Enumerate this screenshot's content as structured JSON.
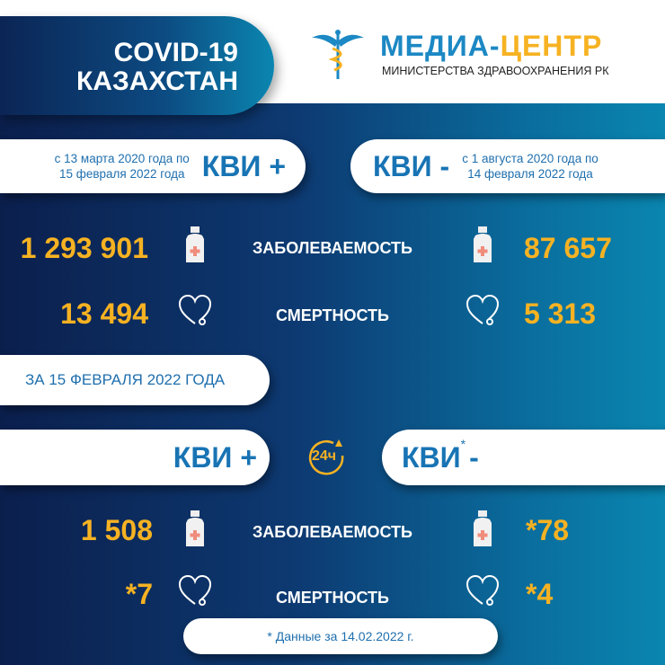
{
  "header": {
    "title_line1": "COVID-19",
    "title_line2": "КАЗАХСТАН",
    "logo_part1": "МЕДИА-",
    "logo_part2": "ЦЕНТР",
    "logo_subtitle": "МИНИСТЕРСТВА ЗДРАВООХРАНЕНИЯ РК"
  },
  "total": {
    "left": {
      "period_line1": "с 13 марта 2020 года по",
      "period_line2": "15 февраля 2022 года",
      "label": "КВИ +",
      "cases": "1 293 901",
      "deaths": "13 494"
    },
    "right": {
      "period_line1": "с 1 августа 2020 года по",
      "period_line2": "14 февраля 2022 года",
      "label": "КВИ -",
      "cases": "87 657",
      "deaths": "5 313"
    },
    "cases_label": "ЗАБОЛЕВАЕМОСТЬ",
    "deaths_label": "СМЕРТНОСТЬ"
  },
  "daily": {
    "date_label": "ЗА 15 ФЕВРАЛЯ 2022 ГОДА",
    "badge": "24ч",
    "left": {
      "label": "КВИ +",
      "cases": "1 508",
      "deaths": "*7"
    },
    "right": {
      "label": "КВИ",
      "label_star": "*",
      "label_suffix": "-",
      "cases": "*78",
      "deaths": "*4"
    },
    "cases_label": "ЗАБОЛЕВАЕМОСТЬ",
    "deaths_label": "СМЕРТНОСТЬ",
    "footnote": "* Данные за 14.02.2022 г."
  },
  "colors": {
    "accent": "#f6b222",
    "brand_blue": "#1874b4",
    "navy": "#0b1f4d",
    "teal": "#0a86b0"
  },
  "icons": [
    "caduceus-icon",
    "medicine-bottle-icon",
    "heart-stethoscope-icon",
    "clock-24h-icon"
  ]
}
